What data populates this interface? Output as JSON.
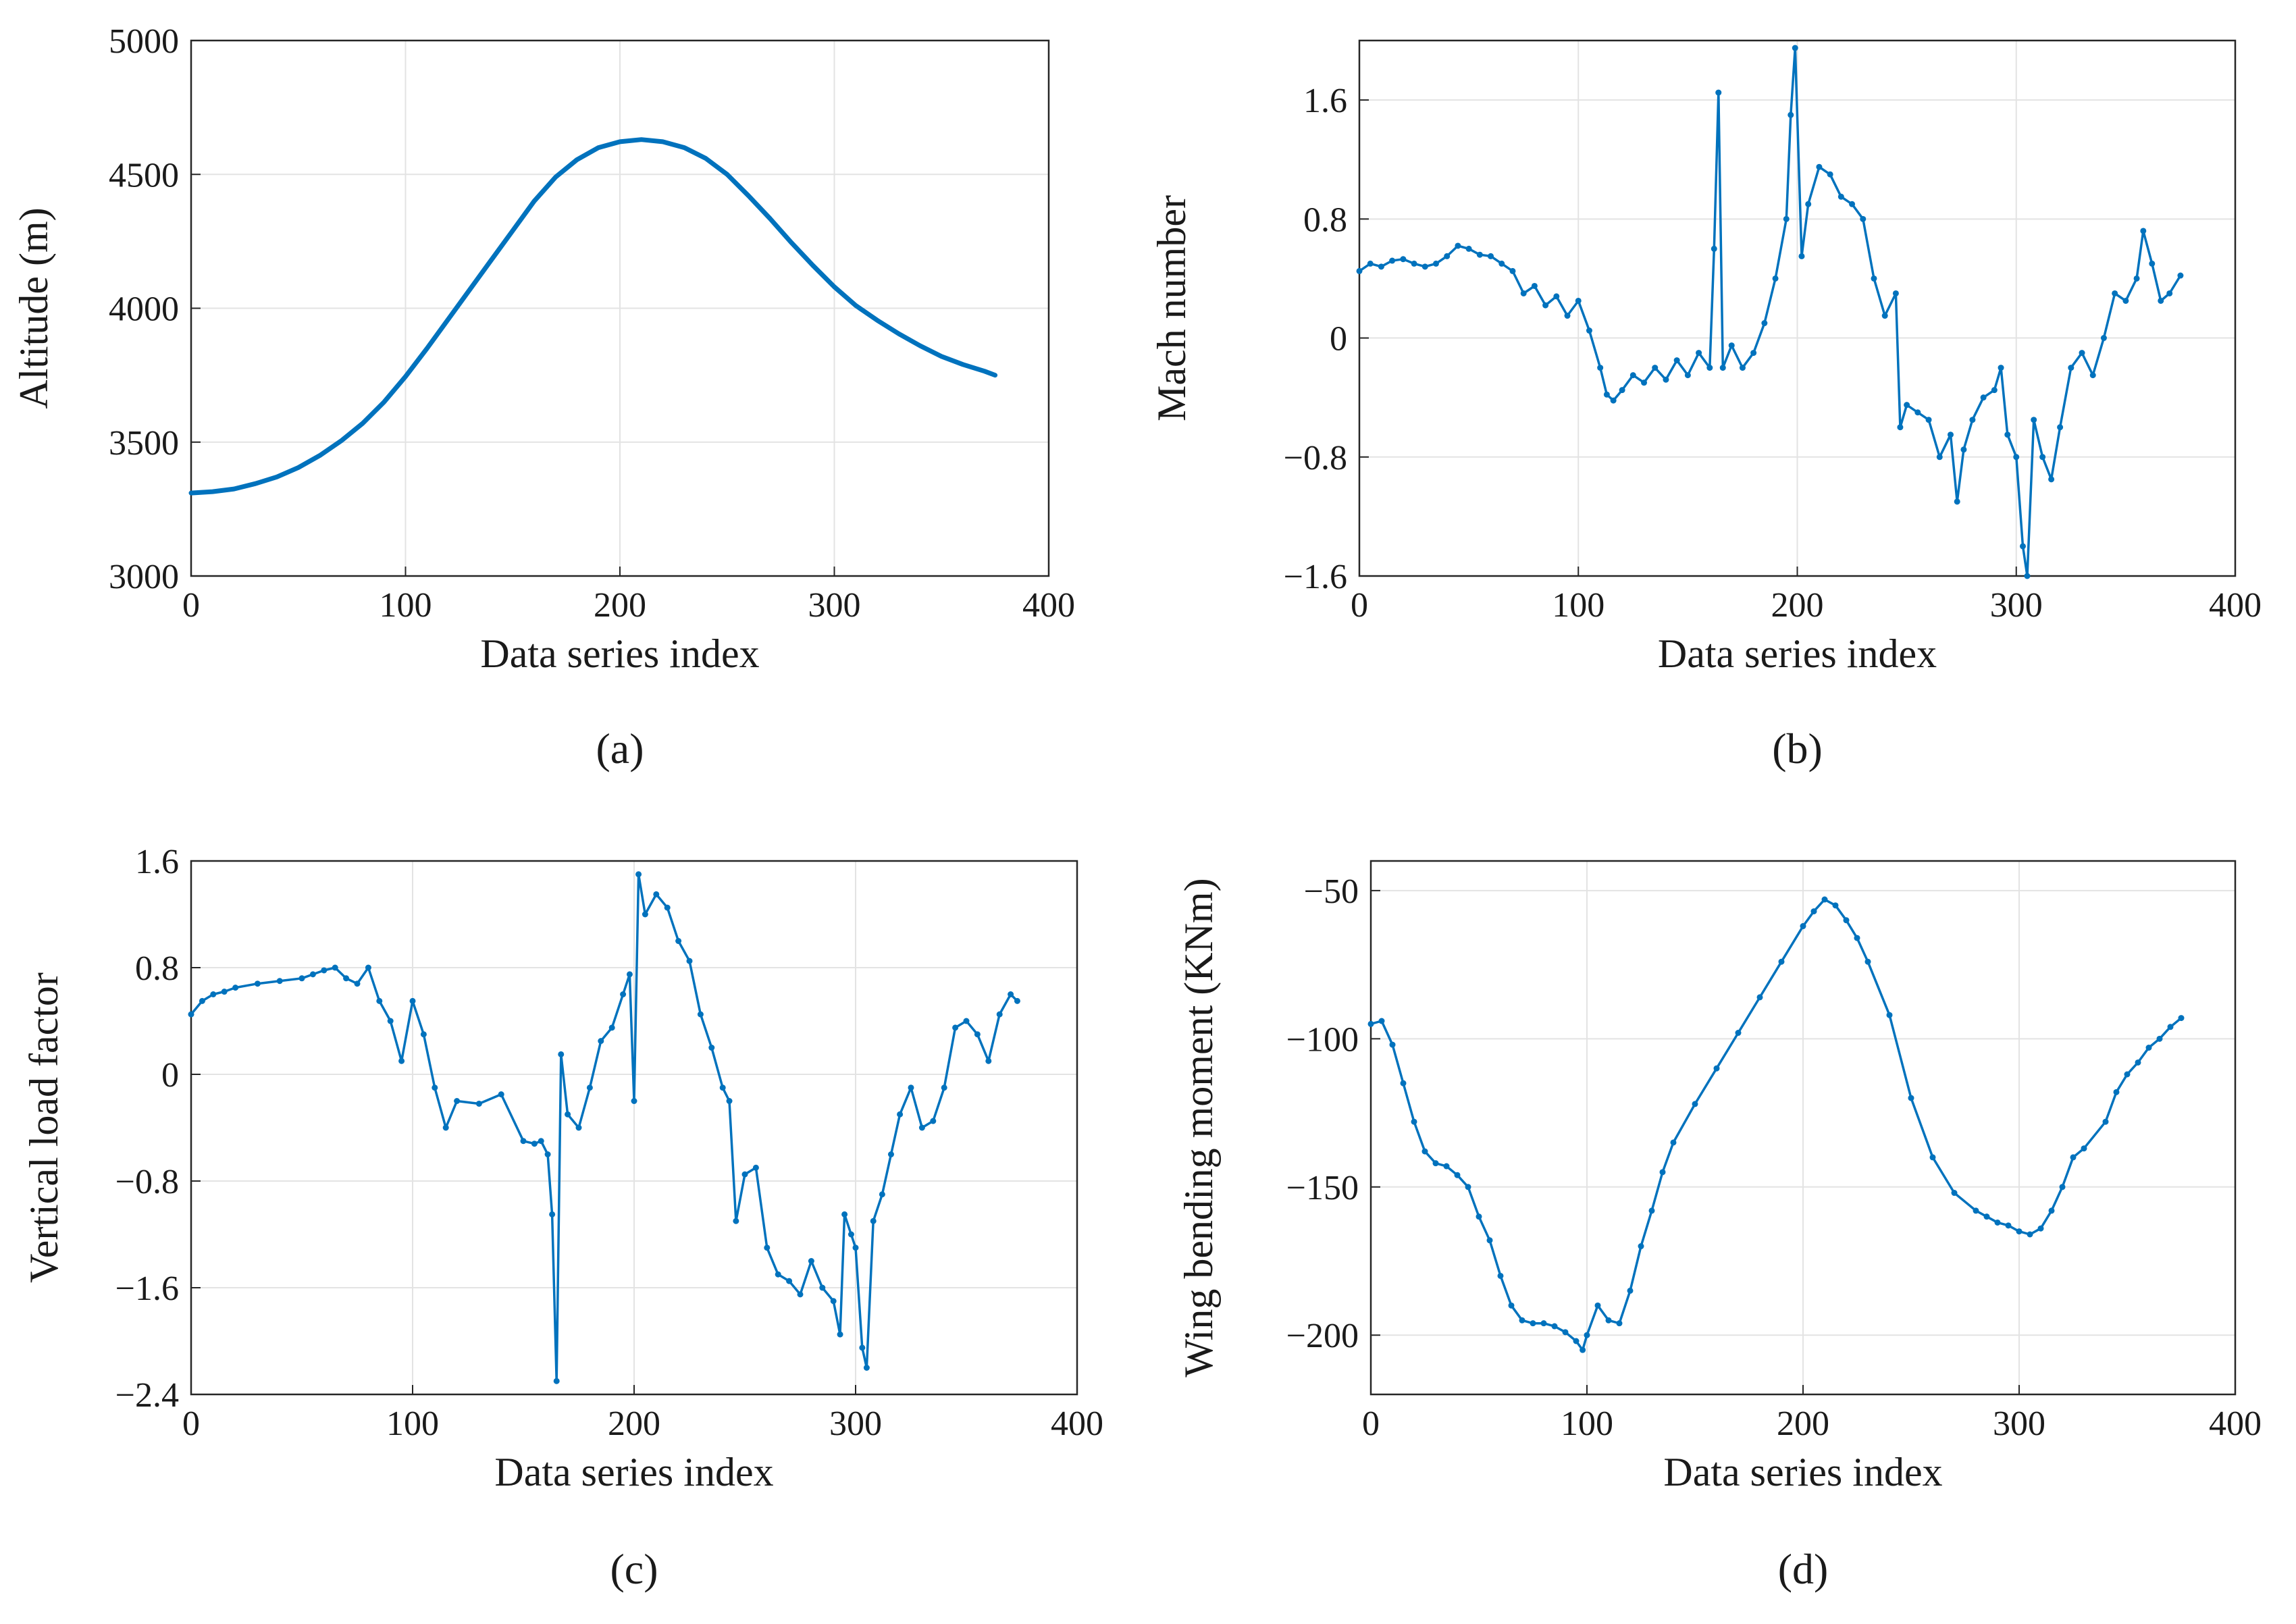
{
  "chart_data": [
    {
      "id": "a",
      "type": "line",
      "panel_label": "(a)",
      "xlabel": "Data series index",
      "ylabel": "Altitude (m)",
      "xlim": [
        0,
        400
      ],
      "ylim": [
        3000,
        5000
      ],
      "xticks": [
        0,
        100,
        200,
        300,
        400
      ],
      "xtick_labels": [
        "0",
        "100",
        "200",
        "300",
        "400"
      ],
      "yticks": [
        3000,
        3500,
        4000,
        4500,
        5000
      ],
      "ytick_labels": [
        "3000",
        "3500",
        "4000",
        "4500",
        "5000"
      ],
      "grid": true,
      "series": [
        {
          "name": "Altitude",
          "color": "#0072bd",
          "markers": false,
          "x": [
            0,
            10,
            20,
            30,
            40,
            50,
            60,
            70,
            80,
            90,
            100,
            110,
            120,
            130,
            140,
            150,
            160,
            170,
            180,
            190,
            200,
            210,
            220,
            230,
            240,
            250,
            260,
            270,
            280,
            290,
            300,
            310,
            320,
            330,
            340,
            350,
            360,
            370,
            375
          ],
          "y": [
            3310,
            3315,
            3325,
            3345,
            3370,
            3405,
            3450,
            3505,
            3570,
            3650,
            3745,
            3850,
            3960,
            4070,
            4180,
            4290,
            4400,
            4490,
            4555,
            4600,
            4622,
            4630,
            4622,
            4600,
            4560,
            4500,
            4420,
            4335,
            4245,
            4160,
            4080,
            4010,
            3955,
            3905,
            3860,
            3820,
            3790,
            3765,
            3750
          ]
        }
      ]
    },
    {
      "id": "b",
      "type": "line",
      "panel_label": "(b)",
      "xlabel": "Data series index",
      "ylabel": "Mach number",
      "xlim": [
        0,
        400
      ],
      "ylim": [
        -1.6,
        2.0
      ],
      "xticks": [
        0,
        100,
        200,
        300,
        400
      ],
      "xtick_labels": [
        "0",
        "100",
        "200",
        "300",
        "400"
      ],
      "yticks": [
        -1.6,
        -0.8,
        0,
        0.8,
        1.6
      ],
      "ytick_labels": [
        "−1.6",
        "−0.8",
        "0",
        "0.8",
        "1.6"
      ],
      "grid": true,
      "series": [
        {
          "name": "Mach number",
          "color": "#0072bd",
          "markers": true,
          "x": [
            0,
            5,
            10,
            15,
            20,
            25,
            30,
            35,
            40,
            45,
            50,
            55,
            60,
            65,
            70,
            75,
            80,
            85,
            90,
            95,
            100,
            105,
            110,
            113,
            116,
            120,
            125,
            130,
            135,
            140,
            145,
            150,
            155,
            160,
            162,
            164,
            166,
            170,
            175,
            180,
            185,
            190,
            195,
            197,
            199,
            202,
            205,
            210,
            215,
            220,
            225,
            230,
            235,
            240,
            245,
            247,
            250,
            255,
            260,
            265,
            270,
            273,
            276,
            280,
            285,
            290,
            293,
            296,
            300,
            303,
            305,
            308,
            312,
            316,
            320,
            325,
            330,
            335,
            340,
            345,
            350,
            355,
            358,
            362,
            366,
            370,
            375
          ],
          "y": [
            0.45,
            0.5,
            0.48,
            0.52,
            0.53,
            0.5,
            0.48,
            0.5,
            0.55,
            0.62,
            0.6,
            0.56,
            0.55,
            0.5,
            0.45,
            0.3,
            0.35,
            0.22,
            0.28,
            0.15,
            0.25,
            0.05,
            -0.2,
            -0.38,
            -0.42,
            -0.35,
            -0.25,
            -0.3,
            -0.2,
            -0.28,
            -0.15,
            -0.25,
            -0.1,
            -0.2,
            0.6,
            1.65,
            -0.2,
            -0.05,
            -0.2,
            -0.1,
            0.1,
            0.4,
            0.8,
            1.5,
            1.95,
            0.55,
            0.9,
            1.15,
            1.1,
            0.95,
            0.9,
            0.8,
            0.4,
            0.15,
            0.3,
            -0.6,
            -0.45,
            -0.5,
            -0.55,
            -0.8,
            -0.65,
            -1.1,
            -0.75,
            -0.55,
            -0.4,
            -0.35,
            -0.2,
            -0.65,
            -0.8,
            -1.4,
            -1.6,
            -0.55,
            -0.8,
            -0.95,
            -0.6,
            -0.2,
            -0.1,
            -0.25,
            0.0,
            0.3,
            0.25,
            0.4,
            0.72,
            0.5,
            0.25,
            0.3,
            0.42
          ]
        }
      ]
    },
    {
      "id": "c",
      "type": "line",
      "panel_label": "(c)",
      "xlabel": "Data series index",
      "ylabel": "Vertical load factor",
      "xlim": [
        0,
        400
      ],
      "ylim": [
        -2.4,
        1.6
      ],
      "xticks": [
        0,
        100,
        200,
        300,
        400
      ],
      "xtick_labels": [
        "0",
        "100",
        "200",
        "300",
        "400"
      ],
      "yticks": [
        -2.4,
        -1.6,
        -0.8,
        0,
        0.8,
        1.6
      ],
      "ytick_labels": [
        "−2.4",
        "−1.6",
        "−0.8",
        "0",
        "0.8",
        "1.6"
      ],
      "grid": true,
      "series": [
        {
          "name": "Vertical load factor",
          "color": "#0072bd",
          "markers": true,
          "x": [
            0,
            5,
            10,
            15,
            20,
            30,
            40,
            50,
            55,
            60,
            65,
            70,
            75,
            80,
            85,
            90,
            95,
            100,
            105,
            110,
            115,
            120,
            130,
            140,
            150,
            155,
            158,
            161,
            163,
            165,
            167,
            170,
            175,
            180,
            185,
            190,
            195,
            198,
            200,
            202,
            205,
            210,
            215,
            220,
            225,
            230,
            235,
            240,
            243,
            246,
            250,
            255,
            260,
            265,
            270,
            275,
            280,
            285,
            290,
            293,
            295,
            298,
            300,
            303,
            305,
            308,
            312,
            316,
            320,
            325,
            330,
            335,
            340,
            345,
            350,
            355,
            360,
            365,
            370,
            373
          ],
          "y": [
            0.45,
            0.55,
            0.6,
            0.62,
            0.65,
            0.68,
            0.7,
            0.72,
            0.75,
            0.78,
            0.8,
            0.72,
            0.68,
            0.8,
            0.55,
            0.4,
            0.1,
            0.55,
            0.3,
            -0.1,
            -0.4,
            -0.2,
            -0.22,
            -0.15,
            -0.5,
            -0.52,
            -0.5,
            -0.6,
            -1.05,
            -2.3,
            0.15,
            -0.3,
            -0.4,
            -0.1,
            0.25,
            0.35,
            0.6,
            0.75,
            -0.2,
            1.5,
            1.2,
            1.35,
            1.25,
            1.0,
            0.85,
            0.45,
            0.2,
            -0.1,
            -0.2,
            -1.1,
            -0.75,
            -0.7,
            -1.3,
            -1.5,
            -1.55,
            -1.65,
            -1.4,
            -1.6,
            -1.7,
            -1.95,
            -1.05,
            -1.2,
            -1.3,
            -2.05,
            -2.2,
            -1.1,
            -0.9,
            -0.6,
            -0.3,
            -0.1,
            -0.4,
            -0.35,
            -0.1,
            0.35,
            0.4,
            0.3,
            0.1,
            0.45,
            0.6,
            0.55
          ]
        }
      ]
    },
    {
      "id": "d",
      "type": "line",
      "panel_label": "(d)",
      "xlabel": "Data series index",
      "ylabel": "Wing bending moment (KNm)",
      "xlim": [
        0,
        400
      ],
      "ylim": [
        -220,
        -40
      ],
      "xticks": [
        0,
        100,
        200,
        300,
        400
      ],
      "xtick_labels": [
        "0",
        "100",
        "200",
        "300",
        "400"
      ],
      "yticks": [
        -200,
        -150,
        -100,
        -50
      ],
      "ytick_labels": [
        "−200",
        "−150",
        "−100",
        "−50"
      ],
      "grid": true,
      "series": [
        {
          "name": "Wing bending moment",
          "color": "#0072bd",
          "markers": true,
          "x": [
            0,
            5,
            10,
            15,
            20,
            25,
            30,
            35,
            40,
            45,
            50,
            55,
            60,
            65,
            70,
            75,
            80,
            85,
            90,
            95,
            98,
            100,
            105,
            110,
            115,
            120,
            125,
            130,
            135,
            140,
            150,
            160,
            170,
            180,
            190,
            200,
            205,
            210,
            215,
            220,
            225,
            230,
            240,
            250,
            260,
            270,
            280,
            285,
            290,
            295,
            300,
            305,
            310,
            315,
            320,
            325,
            330,
            340,
            345,
            350,
            355,
            360,
            365,
            370,
            375
          ],
          "y": [
            -95,
            -94,
            -102,
            -115,
            -128,
            -138,
            -142,
            -143,
            -146,
            -150,
            -160,
            -168,
            -180,
            -190,
            -195,
            -196,
            -196,
            -197,
            -199,
            -202,
            -205,
            -200,
            -190,
            -195,
            -196,
            -185,
            -170,
            -158,
            -145,
            -135,
            -122,
            -110,
            -98,
            -86,
            -74,
            -62,
            -57,
            -53,
            -55,
            -60,
            -66,
            -74,
            -92,
            -120,
            -140,
            -152,
            -158,
            -160,
            -162,
            -163,
            -165,
            -166,
            -164,
            -158,
            -150,
            -140,
            -137,
            -128,
            -118,
            -112,
            -108,
            -103,
            -100,
            -96,
            -93
          ]
        }
      ]
    }
  ]
}
